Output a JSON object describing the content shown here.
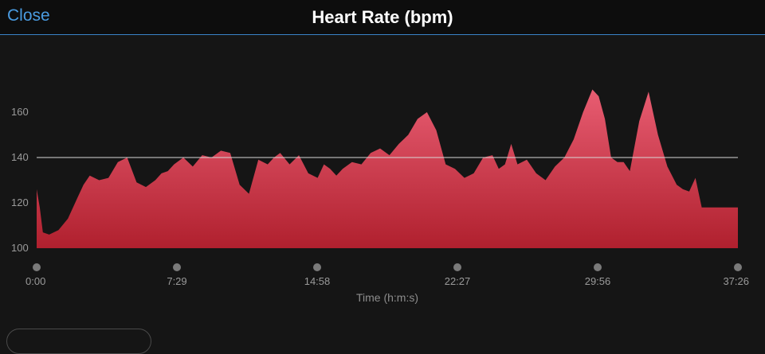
{
  "header": {
    "close_label": "Close",
    "title": "Heart Rate (bpm)"
  },
  "colors": {
    "fill_top": "#e85d72",
    "fill_bottom": "#b0202e",
    "reference_line": "#d8d8d8",
    "accent": "#4a9be0"
  },
  "chart_data": {
    "type": "area",
    "title": "Heart Rate (bpm)",
    "xlabel": "Time (h:m:s)",
    "ylabel": "",
    "y_ticks": [
      100,
      120,
      140,
      160
    ],
    "ylim": [
      100,
      172
    ],
    "x_ticks": [
      "0:00",
      "7:29",
      "14:58",
      "22:27",
      "29:56",
      "37:26"
    ],
    "xlim_seconds": [
      0,
      2246
    ],
    "reference_line": 140,
    "grid": false,
    "series": [
      {
        "x": [
          0,
          10,
          20,
          40,
          70,
          100,
          130,
          150,
          170,
          200,
          230,
          260,
          290,
          320,
          350,
          380,
          400,
          420,
          440,
          470,
          500,
          530,
          560,
          590,
          620,
          650,
          680,
          710,
          740,
          760,
          780,
          810,
          840,
          870,
          900,
          920,
          940,
          960,
          980,
          1010,
          1040,
          1070,
          1100,
          1130,
          1160,
          1190,
          1220,
          1250,
          1280,
          1310,
          1340,
          1370,
          1400,
          1430,
          1460,
          1480,
          1500,
          1520,
          1540,
          1570,
          1600,
          1630,
          1660,
          1690,
          1720,
          1750,
          1780,
          1800,
          1820,
          1840,
          1860,
          1880,
          1900,
          1930,
          1960,
          1990,
          2020,
          2050,
          2070,
          2090,
          2110,
          2130,
          2150,
          2170,
          2190,
          2210,
          2230,
          2246
        ],
        "y": [
          126,
          118,
          107,
          106,
          108,
          113,
          122,
          128,
          132,
          130,
          131,
          138,
          140,
          129,
          127,
          130,
          133,
          134,
          137,
          140,
          136,
          141,
          140,
          143,
          142,
          128,
          124,
          139,
          137,
          140,
          142,
          137,
          141,
          133,
          131,
          137,
          135,
          132,
          135,
          138,
          137,
          142,
          144,
          141,
          146,
          150,
          157,
          160,
          152,
          137,
          135,
          131,
          133,
          140,
          141,
          135,
          137,
          146,
          137,
          139,
          133,
          130,
          136,
          140,
          148,
          160,
          170,
          167,
          157,
          140,
          138,
          138,
          134,
          156,
          169,
          150,
          136,
          128,
          126,
          125,
          131,
          118,
          118,
          118,
          118,
          118,
          118,
          118
        ]
      }
    ]
  }
}
